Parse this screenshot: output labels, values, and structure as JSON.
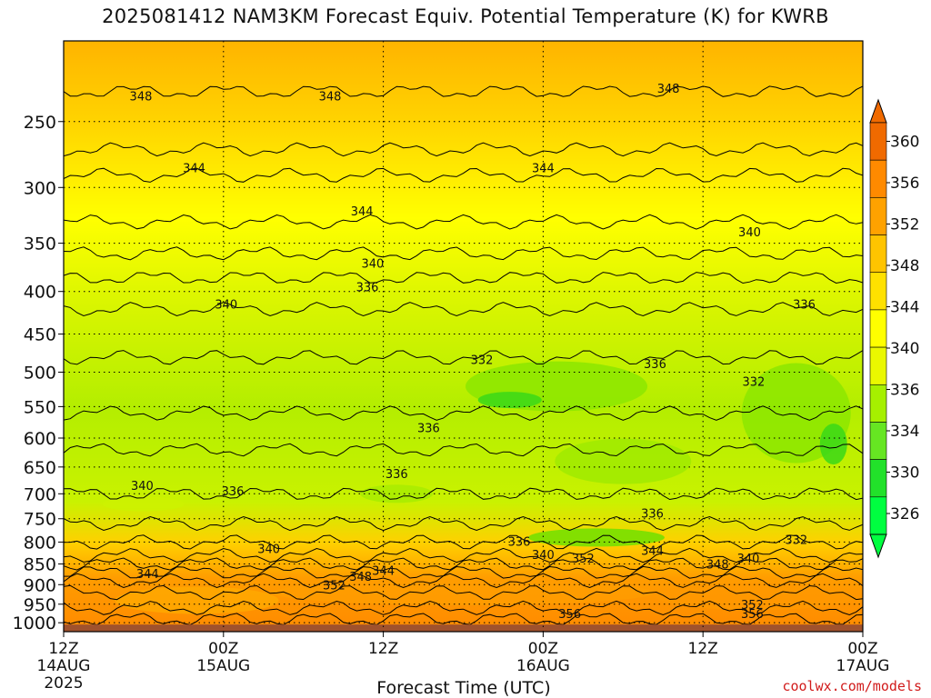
{
  "title": "2025081412 NAM3KM Forecast Equiv. Potential Temperature (K) for KWRB",
  "credit": "coolwx.com/models",
  "chart_data": {
    "type": "heatmap",
    "title": "2025081412 NAM3KM Forecast Equiv. Potential Temperature (K) for KWRB",
    "xlabel": "Forecast Time (UTC)",
    "ylabel": "",
    "x_ticks": [
      {
        "hour": 0,
        "label": "12Z",
        "sub": "14AUG",
        "sub2": "2025"
      },
      {
        "hour": 12,
        "label": "00Z",
        "sub": "15AUG",
        "sub2": ""
      },
      {
        "hour": 24,
        "label": "12Z",
        "sub": "",
        "sub2": ""
      },
      {
        "hour": 36,
        "label": "00Z",
        "sub": "16AUG",
        "sub2": ""
      },
      {
        "hour": 48,
        "label": "12Z",
        "sub": "",
        "sub2": ""
      },
      {
        "hour": 60,
        "label": "00Z",
        "sub": "17AUG",
        "sub2": ""
      }
    ],
    "x_range_hours": [
      0,
      60
    ],
    "y_ticks": [
      250,
      300,
      350,
      400,
      450,
      500,
      550,
      600,
      650,
      700,
      750,
      800,
      850,
      900,
      950,
      1000
    ],
    "y_range_hPa": [
      200,
      1025
    ],
    "y_scale": "log",
    "surface_pressure_hPa": 1005,
    "grid": "dotted",
    "colorbar": {
      "ticks": [
        326,
        330,
        334,
        336,
        340,
        344,
        348,
        352,
        356,
        360
      ],
      "colors": [
        "#00ff40",
        "#22e12a",
        "#66e622",
        "#a6f000",
        "#eaf800",
        "#ffff00",
        "#ffe100",
        "#ffc400",
        "#ffa200",
        "#ff8a00",
        "#f06a00"
      ],
      "extend": "both"
    },
    "contour_labels": [
      {
        "t": 5.8,
        "p": 233,
        "label": "348"
      },
      {
        "t": 20.0,
        "p": 233,
        "label": "348"
      },
      {
        "t": 45.4,
        "p": 228,
        "label": "348"
      },
      {
        "t": 9.8,
        "p": 284,
        "label": "344"
      },
      {
        "t": 36.0,
        "p": 284,
        "label": "344"
      },
      {
        "t": 22.4,
        "p": 320,
        "label": "344"
      },
      {
        "t": 51.5,
        "p": 339,
        "label": "340"
      },
      {
        "t": 23.2,
        "p": 370,
        "label": "340"
      },
      {
        "t": 22.8,
        "p": 395,
        "label": "336"
      },
      {
        "t": 12.2,
        "p": 414,
        "label": "340"
      },
      {
        "t": 55.6,
        "p": 414,
        "label": "336"
      },
      {
        "t": 31.4,
        "p": 483,
        "label": "332"
      },
      {
        "t": 44.4,
        "p": 488,
        "label": "336"
      },
      {
        "t": 51.8,
        "p": 513,
        "label": "332"
      },
      {
        "t": 27.4,
        "p": 583,
        "label": "336"
      },
      {
        "t": 25.0,
        "p": 662,
        "label": "336"
      },
      {
        "t": 5.9,
        "p": 684,
        "label": "340"
      },
      {
        "t": 12.7,
        "p": 694,
        "label": "336"
      },
      {
        "t": 44.2,
        "p": 738,
        "label": "336"
      },
      {
        "t": 34.2,
        "p": 798,
        "label": "336"
      },
      {
        "t": 15.4,
        "p": 814,
        "label": "340"
      },
      {
        "t": 36.0,
        "p": 828,
        "label": "340"
      },
      {
        "t": 39.0,
        "p": 836,
        "label": "352"
      },
      {
        "t": 44.2,
        "p": 818,
        "label": "344"
      },
      {
        "t": 55.0,
        "p": 794,
        "label": "332"
      },
      {
        "t": 49.1,
        "p": 850,
        "label": "348"
      },
      {
        "t": 51.4,
        "p": 836,
        "label": "340"
      },
      {
        "t": 6.3,
        "p": 873,
        "label": "344"
      },
      {
        "t": 24.0,
        "p": 865,
        "label": "344"
      },
      {
        "t": 22.3,
        "p": 879,
        "label": "348"
      },
      {
        "t": 20.3,
        "p": 900,
        "label": "352"
      },
      {
        "t": 51.7,
        "p": 950,
        "label": "352"
      },
      {
        "t": 51.7,
        "p": 975,
        "label": "356"
      },
      {
        "t": 38.0,
        "p": 975,
        "label": "356"
      }
    ]
  }
}
